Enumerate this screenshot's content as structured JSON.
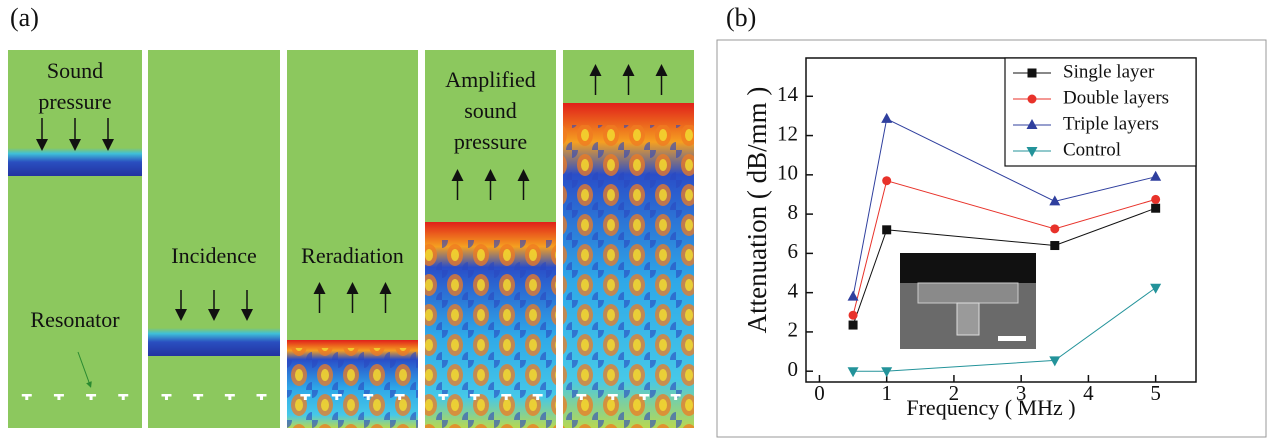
{
  "panel_a": {
    "label": "(a)",
    "frames": [
      {
        "caption": [
          "Sound",
          "pressure"
        ],
        "note": "Resonator"
      },
      {
        "caption": [
          "Incidence"
        ]
      },
      {
        "caption": [
          "Reradiation"
        ]
      },
      {
        "caption": [
          "Amplified",
          "sound",
          "pressure"
        ]
      },
      {
        "caption": []
      }
    ]
  },
  "chart_data": {
    "type": "line",
    "label": "(b)",
    "x_label": "Frequency ( MHz )",
    "y_label": "Attenuation ( dB/mm )",
    "x": [
      0.5,
      1,
      3.5,
      5
    ],
    "series": [
      {
        "name": "Single layer",
        "color": "#111111",
        "marker": "square",
        "values": [
          2.35,
          7.2,
          6.4,
          8.3
        ]
      },
      {
        "name": "Double layers",
        "color": "#e8322a",
        "marker": "circle",
        "values": [
          2.85,
          9.7,
          7.25,
          8.75
        ]
      },
      {
        "name": "Triple layers",
        "color": "#2f3f9e",
        "marker": "triangle-up",
        "values": [
          3.8,
          12.85,
          8.65,
          9.9
        ]
      },
      {
        "name": "Control",
        "color": "#23939a",
        "marker": "triangle-down",
        "values": [
          0,
          0,
          0.55,
          4.25
        ]
      }
    ],
    "xlim": [
      -0.2,
      5.6
    ],
    "xticks": [
      0,
      1,
      2,
      3,
      4,
      5
    ],
    "ylim": [
      -0.55,
      15.95
    ],
    "yticks": [
      0,
      2,
      4,
      6,
      8,
      10,
      12,
      14
    ],
    "legend": "upper-right"
  }
}
